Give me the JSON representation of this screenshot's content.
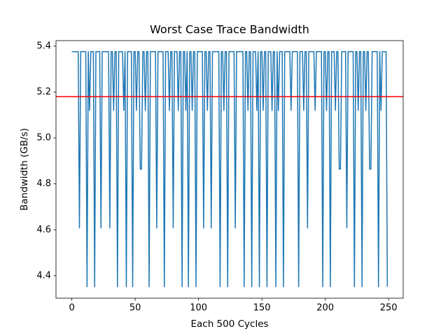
{
  "chart_data": {
    "type": "line",
    "title": "Worst Case Trace Bandwidth",
    "xlabel": "Each 500 Cycles",
    "ylabel": "Bandwidth (GB/s)",
    "color": "#1f77b4",
    "x": [
      0,
      1,
      2,
      3,
      4,
      5,
      6,
      7,
      8,
      9,
      10,
      11,
      12,
      13,
      14,
      15,
      16,
      17,
      18,
      19,
      20,
      21,
      22,
      23,
      24,
      25,
      26,
      27,
      28,
      29,
      30,
      31,
      32,
      33,
      34,
      35,
      36,
      37,
      38,
      39,
      40,
      41,
      42,
      43,
      44,
      45,
      46,
      47,
      48,
      49,
      50,
      51,
      52,
      53,
      54,
      55,
      56,
      57,
      58,
      59,
      60,
      61,
      62,
      63,
      64,
      65,
      66,
      67,
      68,
      69,
      70,
      71,
      72,
      73,
      74,
      75,
      76,
      77,
      78,
      79,
      80,
      81,
      82,
      83,
      84,
      85,
      86,
      87,
      88,
      89,
      90,
      91,
      92,
      93,
      94,
      95,
      96,
      97,
      98,
      99,
      100,
      101,
      102,
      103,
      104,
      105,
      106,
      107,
      108,
      109,
      110,
      111,
      112,
      113,
      114,
      115,
      116,
      117,
      118,
      119,
      120,
      121,
      122,
      123,
      124,
      125,
      126,
      127,
      128,
      129,
      130,
      131,
      132,
      133,
      134,
      135,
      136,
      137,
      138,
      139,
      140,
      141,
      142,
      143,
      144,
      145,
      146,
      147,
      148,
      149,
      150,
      151,
      152,
      153,
      154,
      155,
      156,
      157,
      158,
      159,
      160,
      161,
      162,
      163,
      164,
      165,
      166,
      167,
      168,
      169,
      170,
      171,
      172,
      173,
      174,
      175,
      176,
      177,
      178,
      179,
      180,
      181,
      182,
      183,
      184,
      185,
      186,
      187,
      188,
      189,
      190,
      191,
      192,
      193,
      194,
      195,
      196,
      197,
      198,
      199,
      200,
      201,
      202,
      203,
      204,
      205,
      206,
      207,
      208,
      209,
      210,
      211,
      212,
      213,
      214,
      215,
      216,
      217,
      218,
      219,
      220,
      221,
      222,
      223,
      224,
      225,
      226,
      227,
      228,
      229,
      230,
      231,
      232,
      233,
      234,
      235,
      236,
      237,
      238,
      239,
      240,
      241,
      242,
      243,
      244,
      245,
      246,
      247,
      248,
      249
    ],
    "values": [
      5.376,
      5.376,
      5.376,
      5.376,
      5.376,
      5.376,
      4.608,
      5.376,
      5.376,
      5.376,
      5.376,
      5.376,
      4.352,
      5.376,
      5.12,
      5.376,
      5.376,
      5.376,
      4.352,
      5.376,
      5.376,
      5.376,
      5.376,
      4.608,
      5.376,
      5.376,
      5.376,
      5.376,
      5.376,
      5.376,
      4.608,
      5.376,
      5.376,
      5.12,
      5.376,
      5.376,
      4.352,
      5.376,
      5.376,
      5.376,
      5.376,
      5.12,
      5.376,
      4.352,
      5.376,
      5.376,
      5.376,
      5.376,
      4.352,
      5.376,
      5.376,
      5.12,
      5.376,
      5.376,
      4.864,
      4.864,
      5.376,
      5.376,
      5.12,
      5.376,
      5.376,
      4.352,
      5.376,
      5.376,
      5.376,
      5.376,
      5.376,
      4.608,
      5.376,
      5.376,
      5.376,
      5.376,
      5.376,
      4.352,
      5.376,
      5.376,
      5.376,
      5.12,
      5.376,
      5.376,
      4.608,
      5.376,
      5.376,
      5.376,
      5.12,
      5.376,
      5.376,
      4.352,
      5.376,
      5.376,
      5.12,
      5.376,
      4.352,
      5.376,
      5.376,
      5.12,
      5.376,
      5.376,
      4.352,
      5.376,
      5.376,
      5.376,
      5.376,
      5.376,
      4.608,
      5.376,
      5.376,
      5.12,
      5.376,
      5.376,
      4.608,
      5.376,
      5.376,
      5.376,
      5.376,
      5.376,
      5.376,
      4.352,
      5.376,
      5.376,
      5.12,
      5.376,
      5.376,
      4.352,
      5.376,
      5.376,
      5.376,
      5.376,
      5.376,
      4.608,
      5.376,
      5.376,
      5.376,
      5.376,
      5.376,
      5.376,
      4.352,
      5.376,
      5.376,
      5.12,
      5.376,
      5.376,
      4.352,
      5.376,
      5.376,
      5.376,
      5.12,
      5.376,
      4.352,
      5.376,
      5.376,
      5.12,
      5.376,
      5.376,
      4.352,
      5.376,
      5.376,
      5.376,
      5.12,
      5.376,
      5.376,
      4.352,
      5.376,
      5.12,
      5.376,
      5.376,
      5.376,
      4.352,
      5.376,
      5.376,
      5.376,
      5.376,
      5.376,
      5.12,
      5.376,
      5.376,
      5.376,
      5.376,
      5.376,
      4.352,
      5.376,
      5.376,
      5.376,
      5.12,
      5.376,
      5.376,
      4.608,
      5.376,
      5.376,
      5.376,
      5.376,
      5.376,
      5.12,
      5.376,
      5.376,
      5.376,
      5.376,
      5.376,
      4.352,
      5.376,
      5.376,
      5.12,
      5.376,
      5.376,
      4.352,
      5.376,
      5.376,
      5.376,
      5.12,
      5.376,
      5.376,
      4.864,
      4.864,
      5.376,
      5.376,
      5.376,
      5.376,
      4.608,
      5.376,
      5.376,
      5.376,
      5.376,
      5.376,
      4.352,
      5.376,
      5.376,
      5.12,
      5.376,
      5.376,
      4.352,
      5.376,
      5.376,
      5.12,
      5.376,
      5.376,
      4.864,
      4.864,
      5.376,
      5.376,
      5.376,
      5.376,
      5.376,
      4.352,
      5.376,
      5.12,
      5.376,
      5.376,
      5.376,
      5.376,
      4.352
    ],
    "hline": {
      "value": 5.18,
      "color": "#ff0000"
    },
    "xlim": [
      -12.5,
      261.5
    ],
    "xticks": [
      0,
      50,
      100,
      150,
      200,
      250
    ],
    "ylim": [
      4.302,
      5.424
    ],
    "yticks": [
      4.4,
      4.6,
      4.8,
      {
        "value": 5.0,
        "label": "5.0"
      },
      5.2,
      5.4
    ]
  }
}
